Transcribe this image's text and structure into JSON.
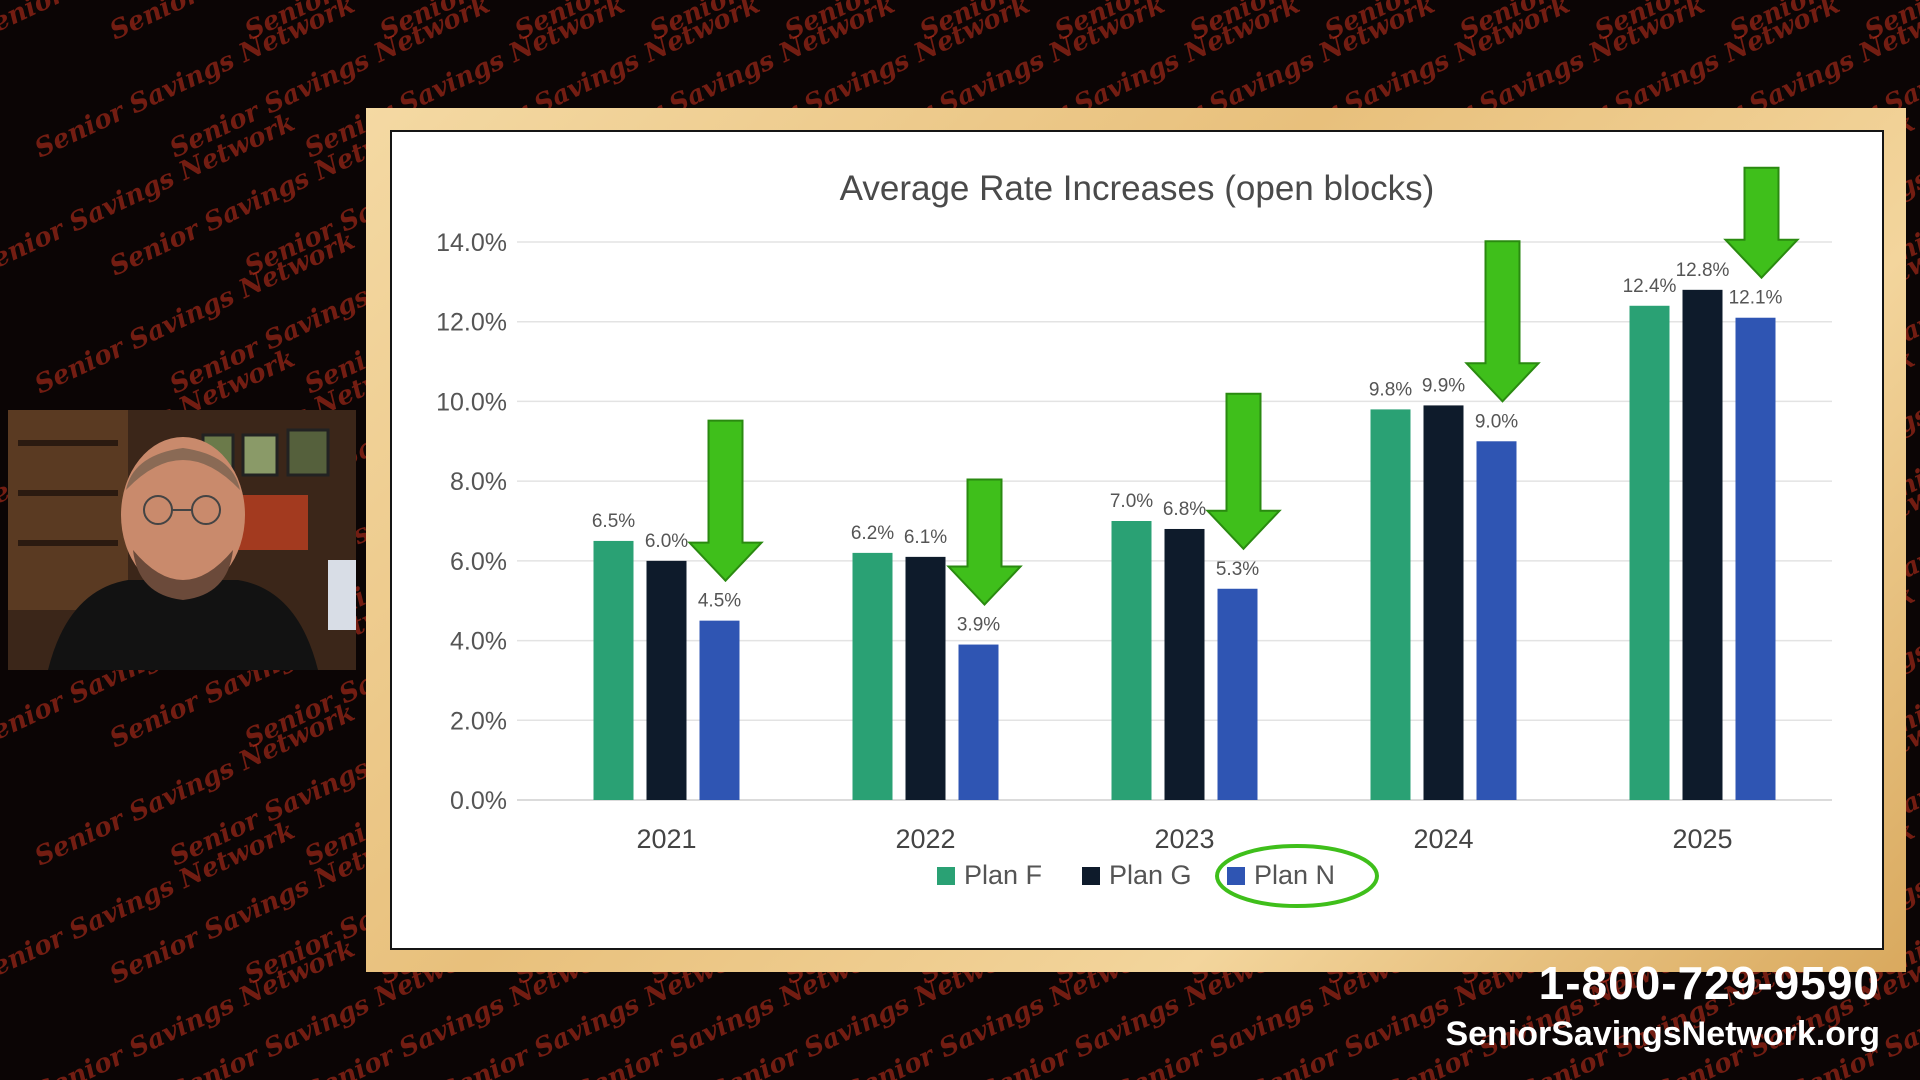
{
  "overlay": {
    "phone": "1-800-729-9590",
    "website": "SeniorSavingsNetwork.org",
    "watermark": "Senior Savings Network"
  },
  "chart_data": {
    "type": "bar",
    "title": "Average Rate Increases (open blocks)",
    "xlabel": "",
    "ylabel": "",
    "ylim": [
      0,
      14
    ],
    "yticks": [
      "0.0%",
      "2.0%",
      "4.0%",
      "6.0%",
      "8.0%",
      "10.0%",
      "12.0%",
      "14.0%"
    ],
    "grid": true,
    "legend_position": "bottom",
    "categories": [
      "2021",
      "2022",
      "2023",
      "2024",
      "2025"
    ],
    "series": [
      {
        "name": "Plan F",
        "color": "#2aa174",
        "values": [
          6.5,
          6.2,
          7.0,
          9.8,
          12.4
        ],
        "labels": [
          "6.5%",
          "6.2%",
          "7.0%",
          "9.8%",
          "12.4%"
        ]
      },
      {
        "name": "Plan G",
        "color": "#0e1b2b",
        "values": [
          6.0,
          6.1,
          6.8,
          9.9,
          12.8
        ],
        "labels": [
          "6.0%",
          "6.1%",
          "6.8%",
          "9.9%",
          "12.8%"
        ]
      },
      {
        "name": "Plan N",
        "color": "#2f55b3",
        "values": [
          4.5,
          3.9,
          5.3,
          9.0,
          12.1
        ],
        "labels": [
          "4.5%",
          "3.9%",
          "5.3%",
          "9.0%",
          "12.1%"
        ]
      }
    ],
    "annotations": {
      "arrows": "green downward arrows pointing at Plan N bar in each year",
      "arrow_color": "#3fbf1b",
      "highlight": "Plan N legend entry circled in green"
    }
  }
}
